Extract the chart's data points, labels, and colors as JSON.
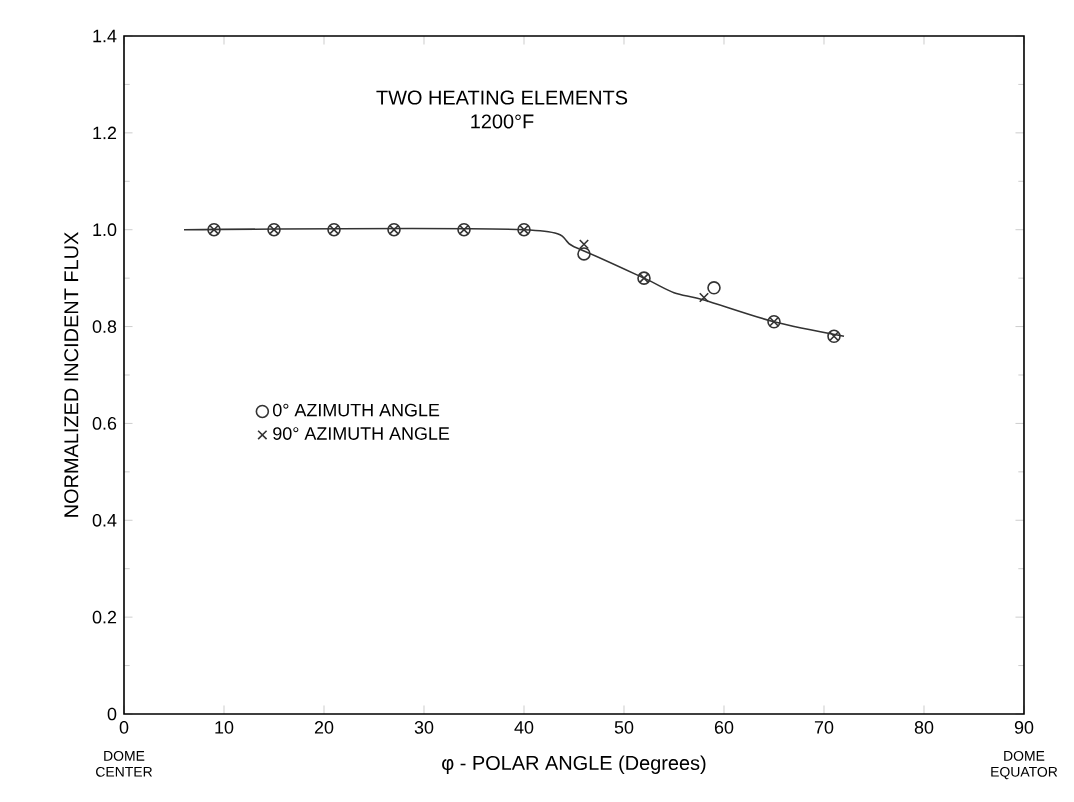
{
  "chart_data": {
    "type": "scatter",
    "title": "TWO HEATING ELEMENTS",
    "subtitle": "1200°F",
    "xlabel": "φ - POLAR ANGLE (Degrees)",
    "ylabel": "NORMALIZED INCIDENT FLUX",
    "annotations": [
      "DOME CENTER",
      "DOME EQUATOR"
    ],
    "xlim": [
      0,
      90
    ],
    "ylim": [
      0,
      1.4
    ],
    "xticks": [
      0,
      10,
      20,
      30,
      40,
      50,
      60,
      70,
      80,
      90
    ],
    "yticks": [
      0,
      0.2,
      0.4,
      0.6,
      0.8,
      {
        "value": 1,
        "label": "1.0"
      },
      1.2,
      1.4
    ],
    "grid": false,
    "legend": "left",
    "series": [
      {
        "name": "0° AZIMUTH ANGLE",
        "color": "#333333",
        "marker": "circle",
        "x": [
          9,
          15,
          21,
          27,
          34,
          40,
          46,
          52,
          59,
          65,
          71
        ],
        "values": [
          1.0,
          1.0,
          1.0,
          1.0,
          1.0,
          1.0,
          0.95,
          0.9,
          0.88,
          0.81,
          0.78
        ]
      },
      {
        "name": "90° AZIMUTH ANGLE",
        "color": "#333333",
        "marker": "cross",
        "x": [
          9,
          15,
          21,
          27,
          34,
          40,
          46,
          52,
          58,
          65,
          71
        ],
        "values": [
          1.0,
          1.0,
          1.0,
          1.0,
          1.0,
          1.0,
          0.97,
          0.9,
          0.86,
          0.81,
          0.78
        ]
      },
      {
        "type": "line",
        "color": "#333333",
        "marker": "none",
        "x": [
          6,
          40,
          45,
          52,
          55,
          58,
          65,
          72
        ],
        "values": [
          1.0,
          1.0,
          0.965,
          0.9,
          0.87,
          0.855,
          0.81,
          0.78
        ]
      }
    ]
  }
}
